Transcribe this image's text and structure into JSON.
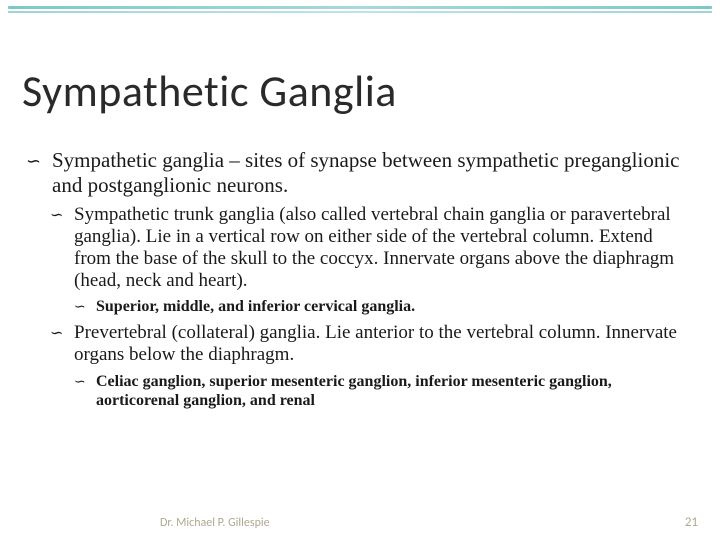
{
  "title": "Sympathetic Ganglia",
  "bullets": {
    "b1": "Sympathetic ganglia – sites of synapse between sympathetic preganglionic and postganglionic neurons.",
    "b2a": "Sympathetic trunk ganglia (also called vertebral chain ganglia or paravertebral ganglia).  Lie in a vertical row on either side of the vertebral column.  Extend from the base of the skull to the coccyx.  Innervate organs above the diaphragm (head, neck and heart).",
    "b3a": "Superior, middle, and inferior cervical ganglia.",
    "b2b": "Prevertebral (collateral) ganglia.  Lie anterior to the vertebral column.  Innervate organs below the diaphragm.",
    "b3b": "Celiac ganglion, superior mesenteric ganglion, inferior mesenteric ganglion, aorticorenal ganglion, and renal"
  },
  "footer": {
    "author": "Dr. Michael P. Gillespie",
    "page": "21"
  },
  "colors": {
    "accent": "#7fc8c8",
    "text": "#1a1a1a",
    "footer": "#b0a890",
    "background": "#ffffff"
  }
}
